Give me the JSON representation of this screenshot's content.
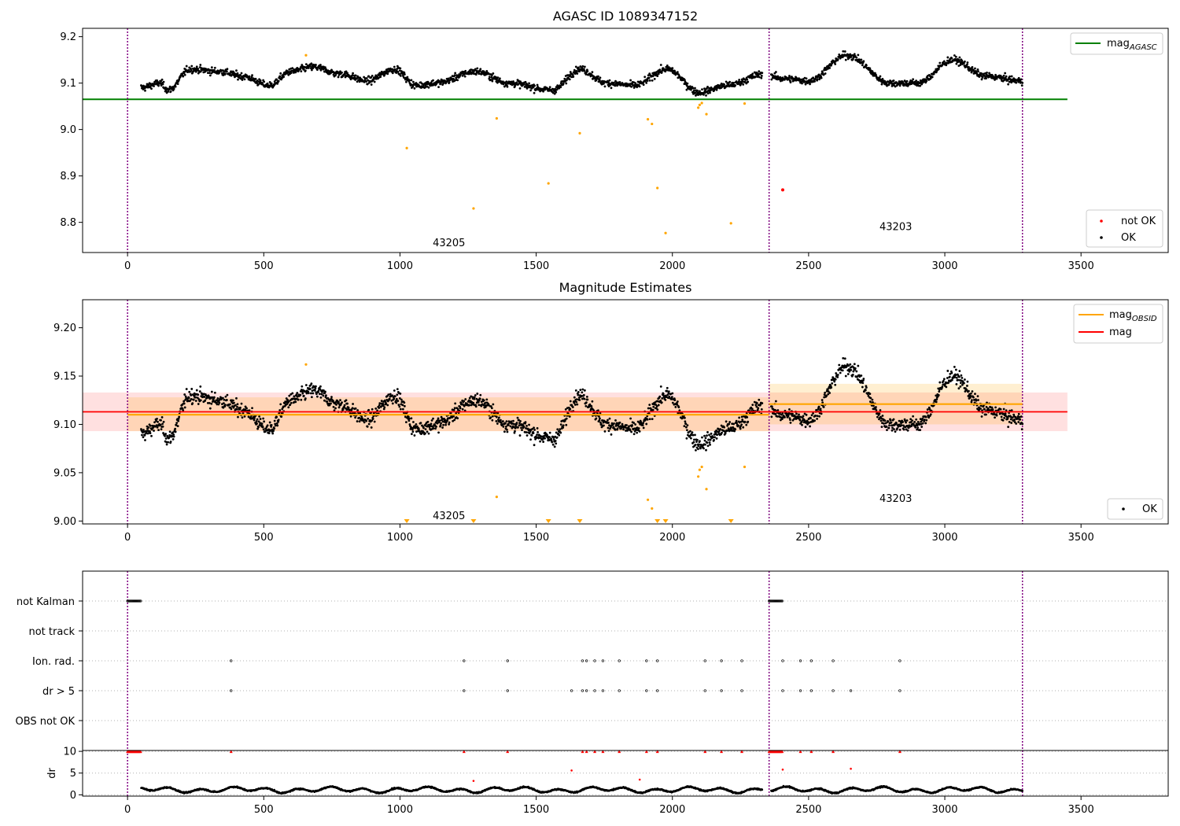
{
  "colors": {
    "ok": "#000000",
    "not_ok": "#ff0000",
    "flagged": "#ffa500",
    "mag_agasc": "#008000",
    "mag_obsid": "#ffa500",
    "mag": "#ff0000",
    "obs_boundary": "#800080",
    "grid": "#b0b0b0"
  },
  "observations": [
    {
      "obsid": "43205",
      "x_start": 0,
      "x_end": 2355
    },
    {
      "obsid": "43203",
      "x_start": 2355,
      "x_end": 3285
    }
  ],
  "obs_boundaries_x": [
    0,
    2355,
    3285
  ],
  "chart_data": [
    {
      "type": "scatter",
      "title": "AGASC ID 1089347152",
      "xlim": [
        -165,
        3820
      ],
      "ylim": [
        8.735,
        9.218
      ],
      "xticks": [
        0,
        500,
        1000,
        1500,
        2000,
        2500,
        3000,
        3500
      ],
      "yticks": [
        8.8,
        8.9,
        9.0,
        9.1,
        9.2
      ],
      "ytick_labels": [
        "8.8",
        "8.9",
        "9.0",
        "9.1",
        "9.2"
      ],
      "mag_agasc": 9.065,
      "mag_agasc_x_range": [
        -165,
        3450
      ],
      "obs_labels": [
        {
          "text": "43205",
          "x": 1180,
          "y": 8.755
        },
        {
          "text": "43203",
          "x": 2820,
          "y": 8.79
        }
      ],
      "legend_upper": [
        {
          "label": "mag",
          "subscript": "AGASC"
        }
      ],
      "legend_lower": [
        {
          "label": "not OK"
        },
        {
          "label": "OK"
        }
      ],
      "series": [
        {
          "name": "OK",
          "base_level": 9.108,
          "wave_segments": [
            {
              "x": 50,
              "y": 9.09
            },
            {
              "x": 120,
              "y": 9.1
            },
            {
              "x": 150,
              "y": 9.085
            },
            {
              "x": 230,
              "y": 9.13
            },
            {
              "x": 340,
              "y": 9.125
            },
            {
              "x": 420,
              "y": 9.115
            },
            {
              "x": 520,
              "y": 9.095
            },
            {
              "x": 600,
              "y": 9.125
            },
            {
              "x": 680,
              "y": 9.135
            },
            {
              "x": 780,
              "y": 9.12
            },
            {
              "x": 880,
              "y": 9.105
            },
            {
              "x": 980,
              "y": 9.13
            },
            {
              "x": 1060,
              "y": 9.095
            },
            {
              "x": 1130,
              "y": 9.1
            },
            {
              "x": 1280,
              "y": 9.125
            },
            {
              "x": 1400,
              "y": 9.1
            },
            {
              "x": 1560,
              "y": 9.085
            },
            {
              "x": 1660,
              "y": 9.13
            },
            {
              "x": 1760,
              "y": 9.1
            },
            {
              "x": 1860,
              "y": 9.095
            },
            {
              "x": 1980,
              "y": 9.13
            },
            {
              "x": 2100,
              "y": 9.08
            },
            {
              "x": 2200,
              "y": 9.095
            },
            {
              "x": 2340,
              "y": 9.12
            },
            {
              "x": 2400,
              "y": 9.11
            },
            {
              "x": 2500,
              "y": 9.105
            },
            {
              "x": 2640,
              "y": 9.16
            },
            {
              "x": 2800,
              "y": 9.1
            },
            {
              "x": 2900,
              "y": 9.1
            },
            {
              "x": 3030,
              "y": 9.15
            },
            {
              "x": 3150,
              "y": 9.115
            },
            {
              "x": 3280,
              "y": 9.105
            }
          ]
        },
        {
          "name": "flagged",
          "points": [
            {
              "x": 655,
              "y": 9.16
            },
            {
              "x": 1025,
              "y": 8.96
            },
            {
              "x": 1270,
              "y": 8.83
            },
            {
              "x": 1355,
              "y": 9.024
            },
            {
              "x": 1545,
              "y": 8.884
            },
            {
              "x": 1660,
              "y": 8.992
            },
            {
              "x": 1910,
              "y": 9.022
            },
            {
              "x": 1925,
              "y": 9.012
            },
            {
              "x": 1945,
              "y": 8.874
            },
            {
              "x": 1975,
              "y": 8.777
            },
            {
              "x": 2095,
              "y": 9.047
            },
            {
              "x": 2100,
              "y": 9.053
            },
            {
              "x": 2108,
              "y": 9.057
            },
            {
              "x": 2125,
              "y": 9.033
            },
            {
              "x": 2215,
              "y": 8.798
            },
            {
              "x": 2265,
              "y": 9.056
            }
          ]
        },
        {
          "name": "not OK",
          "points": [
            {
              "x": 2405,
              "y": 8.87
            }
          ]
        }
      ]
    },
    {
      "type": "scatter",
      "title": "Magnitude Estimates",
      "xlim": [
        -165,
        3820
      ],
      "ylim": [
        8.997,
        9.229
      ],
      "xticks": [
        0,
        500,
        1000,
        1500,
        2000,
        2500,
        3000,
        3500
      ],
      "yticks": [
        9.0,
        9.05,
        9.1,
        9.15,
        9.2
      ],
      "ytick_labels": [
        "9.00",
        "9.05",
        "9.10",
        "9.15",
        "9.20"
      ],
      "mag": 9.113,
      "mag_band": [
        9.093,
        9.133
      ],
      "mag_x_range": [
        -165,
        3450
      ],
      "mag_obsid": [
        {
          "x_range": [
            0,
            2355
          ],
          "value": 9.11,
          "band": [
            9.093,
            9.128
          ]
        },
        {
          "x_range": [
            2355,
            3285
          ],
          "value": 9.121,
          "band": [
            9.1,
            9.142
          ]
        }
      ],
      "obs_labels": [
        {
          "text": "43205",
          "x": 1180,
          "y": 9.005
        },
        {
          "text": "43203",
          "x": 2820,
          "y": 9.023
        }
      ],
      "legend_upper": [
        {
          "label": "mag",
          "subscript": "OBSID"
        },
        {
          "label": "mag"
        }
      ],
      "legend_lower": [
        {
          "label": "OK"
        }
      ],
      "flagged_points": [
        {
          "x": 655,
          "y": 9.162
        },
        {
          "x": 1355,
          "y": 9.025
        },
        {
          "x": 1910,
          "y": 9.022
        },
        {
          "x": 1925,
          "y": 9.013
        },
        {
          "x": 2095,
          "y": 9.046
        },
        {
          "x": 2100,
          "y": 9.053
        },
        {
          "x": 2108,
          "y": 9.056
        },
        {
          "x": 2125,
          "y": 9.033
        },
        {
          "x": 2265,
          "y": 9.056
        }
      ],
      "below_range_markers_x": [
        1025,
        1270,
        1545,
        1660,
        1945,
        1975,
        2215
      ]
    },
    {
      "type": "scatter",
      "categories": [
        "not Kalman",
        "not track",
        "Ion. rad.",
        "dr > 5",
        "OBS not OK"
      ],
      "xlim": [
        -165,
        3820
      ],
      "flags": {
        "not Kalman": {
          "ranges": [
            [
              0,
              50
            ],
            [
              2355,
              2405
            ]
          ]
        },
        "not track": {
          "x": []
        },
        "Ion. rad.": {
          "x": [
            380,
            1235,
            1395,
            1670,
            1685,
            1715,
            1745,
            1805,
            1905,
            1945,
            2120,
            2180,
            2255,
            2405,
            2470,
            2510,
            2590,
            2835
          ]
        },
        "dr > 5": {
          "x": [
            380,
            1235,
            1395,
            1630,
            1670,
            1685,
            1715,
            1745,
            1805,
            1905,
            1945,
            2120,
            2180,
            2255,
            2405,
            2470,
            2510,
            2590,
            2655,
            2835
          ]
        },
        "OBS not OK": {
          "x": []
        }
      }
    },
    {
      "type": "scatter",
      "ylabel": "dr",
      "xlim": [
        -165,
        3820
      ],
      "ylim": [
        -0.3,
        10.2
      ],
      "xticks": [
        0,
        500,
        1000,
        1500,
        2000,
        2500,
        3000,
        3500
      ],
      "yticks": [
        0,
        5,
        10
      ],
      "ytick_labels": [
        "0",
        "5",
        "10"
      ],
      "capped_points_x": [
        380,
        1235,
        1395,
        1670,
        1685,
        1715,
        1745,
        1805,
        1905,
        1945,
        2120,
        2180,
        2255,
        2470,
        2510,
        2590,
        2835
      ],
      "capped_ranges": [
        [
          0,
          50
        ],
        [
          2355,
          2405
        ]
      ],
      "high_points": [
        {
          "x": 1270,
          "y": 3.2
        },
        {
          "x": 1630,
          "y": 5.6
        },
        {
          "x": 1880,
          "y": 3.5
        },
        {
          "x": 2405,
          "y": 5.8
        },
        {
          "x": 2655,
          "y": 6.0
        }
      ],
      "typical_dr_range": [
        0.2,
        2.5
      ]
    }
  ]
}
